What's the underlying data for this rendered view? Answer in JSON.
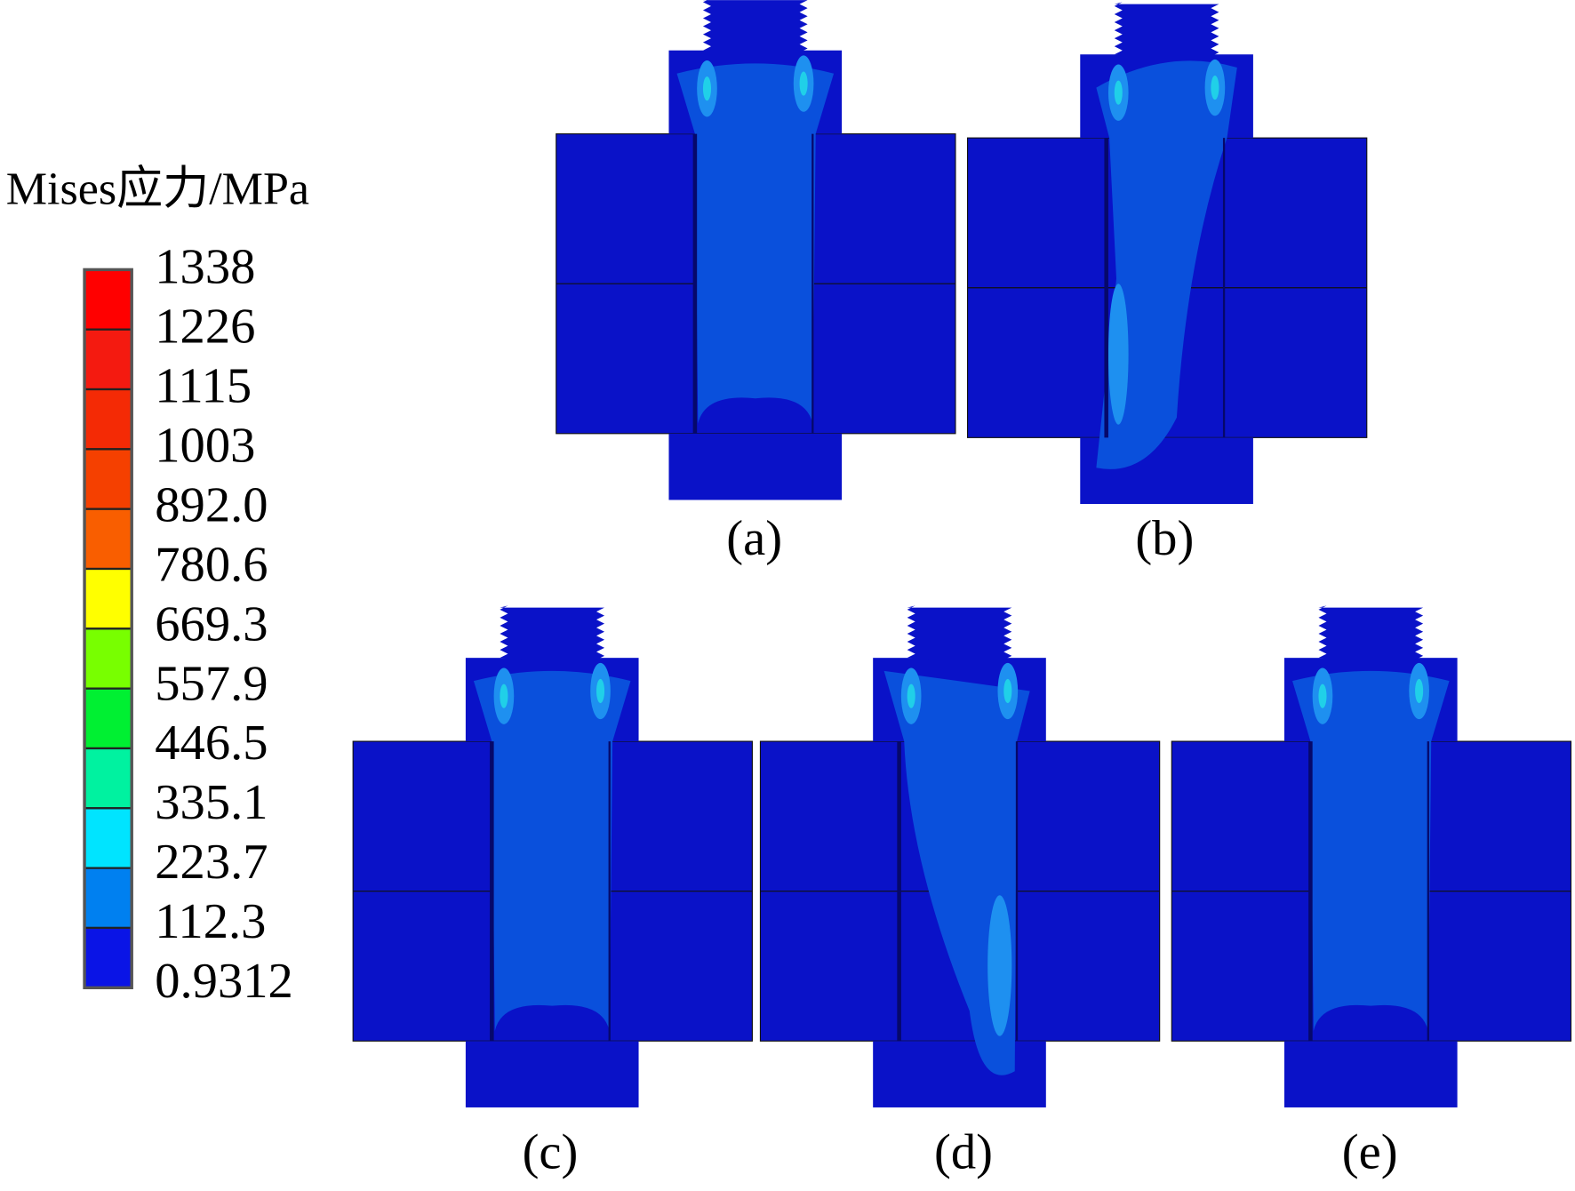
{
  "legend": {
    "title": "Mises应力/MPa",
    "labels": [
      "1338",
      "1226",
      "1115",
      "1003",
      "892.0",
      "780.6",
      "669.3",
      "557.9",
      "446.5",
      "335.1",
      "223.7",
      "112.3",
      "0.9312"
    ]
  },
  "panels": [
    "(a)",
    "(b)",
    "(c)",
    "(d)",
    "(e)"
  ]
}
